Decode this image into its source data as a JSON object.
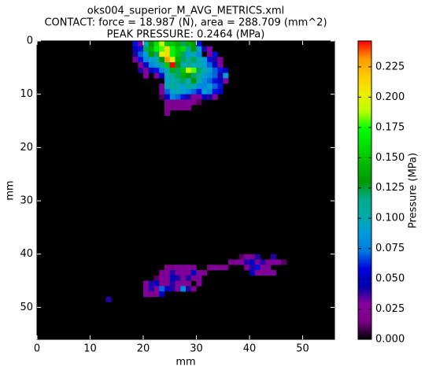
{
  "chart_data": {
    "type": "heatmap",
    "title_lines": [
      "oks004_superior_M_AVG_METRICS.xml",
      "CONTACT: force = 18.987 (N), area = 288.709 (mm^2)",
      "PEAK PRESSURE: 0.2464 (MPa)"
    ],
    "xlabel": "mm",
    "ylabel": "mm",
    "colorbar_label": "Pressure (MPa)",
    "xlim": [
      0,
      56
    ],
    "ylim": [
      56,
      0
    ],
    "xticks": [
      0,
      10,
      20,
      30,
      40,
      50
    ],
    "yticks": [
      0,
      10,
      20,
      30,
      40,
      50
    ],
    "clim": [
      0,
      0.2464
    ],
    "cticks": [
      {
        "value": 0,
        "label": "0.000"
      },
      {
        "value": 0.025,
        "label": "0.025"
      },
      {
        "value": 0.05,
        "label": "0.050"
      },
      {
        "value": 0.075,
        "label": "0.075"
      },
      {
        "value": 0.1,
        "label": "0.100"
      },
      {
        "value": 0.125,
        "label": "0.125"
      },
      {
        "value": 0.15,
        "label": "0.150"
      },
      {
        "value": 0.175,
        "label": "0.175"
      },
      {
        "value": 0.2,
        "label": "0.200"
      },
      {
        "value": 0.225,
        "label": "0.225"
      }
    ],
    "background": "#000000",
    "colormap": [
      "#000000",
      "#770088",
      "#880099",
      "#0000aa",
      "#0000dd",
      "#0077dd",
      "#0099dd",
      "#00aaaa",
      "#00aa88",
      "#009900",
      "#00bb00",
      "#00dd00",
      "#00ff00",
      "#bbff00",
      "#eeee00",
      "#ffcc00",
      "#ff9900",
      "#ff0000"
    ],
    "cells": [
      [
        18,
        0,
        0.06
      ],
      [
        19,
        0,
        0.03
      ],
      [
        20,
        0,
        0.1
      ],
      [
        21,
        0,
        0.13
      ],
      [
        22,
        0,
        0.16
      ],
      [
        23,
        0,
        0.19
      ],
      [
        24,
        0,
        0.15
      ],
      [
        25,
        0,
        0.15
      ],
      [
        26,
        0,
        0.14
      ],
      [
        27,
        0,
        0.12
      ],
      [
        28,
        0,
        0.14
      ],
      [
        29,
        0,
        0.13
      ],
      [
        30,
        0,
        0.06
      ],
      [
        18,
        1,
        0.05
      ],
      [
        19,
        1,
        0.06
      ],
      [
        20,
        1,
        0.12
      ],
      [
        21,
        1,
        0.14
      ],
      [
        22,
        1,
        0.17
      ],
      [
        23,
        1,
        0.18
      ],
      [
        24,
        1,
        0.21
      ],
      [
        25,
        1,
        0.17
      ],
      [
        26,
        1,
        0.15
      ],
      [
        27,
        1,
        0.16
      ],
      [
        28,
        1,
        0.11
      ],
      [
        29,
        1,
        0.13
      ],
      [
        30,
        1,
        0.09
      ],
      [
        31,
        1,
        0.04
      ],
      [
        32,
        1,
        0.03
      ],
      [
        18,
        2,
        0.04
      ],
      [
        19,
        2,
        0.07
      ],
      [
        20,
        2,
        0.09
      ],
      [
        21,
        2,
        0.13
      ],
      [
        22,
        2,
        0.12
      ],
      [
        23,
        2,
        0.2
      ],
      [
        24,
        2,
        0.21
      ],
      [
        25,
        2,
        0.17
      ],
      [
        26,
        2,
        0.15
      ],
      [
        27,
        2,
        0.12
      ],
      [
        28,
        2,
        0.09
      ],
      [
        29,
        2,
        0.1
      ],
      [
        30,
        2,
        0.08
      ],
      [
        32,
        2,
        0.03
      ],
      [
        33,
        2,
        0.06
      ],
      [
        18,
        3,
        0.03
      ],
      [
        19,
        3,
        0.06
      ],
      [
        20,
        3,
        0.08
      ],
      [
        21,
        3,
        0.09
      ],
      [
        22,
        3,
        0.1
      ],
      [
        23,
        3,
        0.13
      ],
      [
        24,
        3,
        0.23
      ],
      [
        25,
        3,
        0.2
      ],
      [
        26,
        3,
        0.14
      ],
      [
        27,
        3,
        0.12
      ],
      [
        28,
        3,
        0.11
      ],
      [
        29,
        3,
        0.12
      ],
      [
        30,
        3,
        0.1
      ],
      [
        31,
        3,
        0.09
      ],
      [
        32,
        3,
        0.06
      ],
      [
        33,
        3,
        0.04
      ],
      [
        34,
        3,
        0.03
      ],
      [
        19,
        4,
        0.03
      ],
      [
        20,
        4,
        0.05
      ],
      [
        21,
        4,
        0.08
      ],
      [
        22,
        4,
        0.09
      ],
      [
        23,
        4,
        0.11
      ],
      [
        24,
        4,
        0.15
      ],
      [
        25,
        4,
        0.2464
      ],
      [
        26,
        4,
        0.13
      ],
      [
        27,
        4,
        0.1
      ],
      [
        28,
        4,
        0.11
      ],
      [
        29,
        4,
        0.1
      ],
      [
        30,
        4,
        0.1
      ],
      [
        31,
        4,
        0.09
      ],
      [
        32,
        4,
        0.07
      ],
      [
        33,
        4,
        0.05
      ],
      [
        34,
        4,
        0.03
      ],
      [
        19,
        5,
        0.04
      ],
      [
        20,
        5,
        0.03
      ],
      [
        21,
        5,
        0.05
      ],
      [
        22,
        5,
        0.06
      ],
      [
        23,
        5,
        0.08
      ],
      [
        24,
        5,
        0.1
      ],
      [
        25,
        5,
        0.14
      ],
      [
        26,
        5,
        0.12
      ],
      [
        27,
        5,
        0.15
      ],
      [
        28,
        5,
        0.19
      ],
      [
        29,
        5,
        0.18
      ],
      [
        30,
        5,
        0.12
      ],
      [
        31,
        5,
        0.1
      ],
      [
        32,
        5,
        0.09
      ],
      [
        33,
        5,
        0.07
      ],
      [
        34,
        5,
        0.06
      ],
      [
        35,
        5,
        0.05
      ],
      [
        20,
        6,
        0.03
      ],
      [
        22,
        6,
        0.03
      ],
      [
        23,
        6,
        0.05
      ],
      [
        24,
        6,
        0.1
      ],
      [
        25,
        6,
        0.11
      ],
      [
        26,
        6,
        0.12
      ],
      [
        27,
        6,
        0.14
      ],
      [
        28,
        6,
        0.13
      ],
      [
        29,
        6,
        0.12
      ],
      [
        30,
        6,
        0.11
      ],
      [
        31,
        6,
        0.09
      ],
      [
        32,
        6,
        0.08
      ],
      [
        33,
        6,
        0.07
      ],
      [
        34,
        6,
        0.04
      ],
      [
        35,
        6,
        0.09
      ],
      [
        24,
        7,
        0.09
      ],
      [
        25,
        7,
        0.1
      ],
      [
        26,
        7,
        0.11
      ],
      [
        27,
        7,
        0.12
      ],
      [
        28,
        7,
        0.1
      ],
      [
        29,
        7,
        0.13
      ],
      [
        30,
        7,
        0.1
      ],
      [
        31,
        7,
        0.08
      ],
      [
        32,
        7,
        0.07
      ],
      [
        33,
        7,
        0.06
      ],
      [
        34,
        7,
        0.05
      ],
      [
        35,
        7,
        0.03
      ],
      [
        23,
        8,
        0.03
      ],
      [
        24,
        8,
        0.1
      ],
      [
        25,
        8,
        0.11
      ],
      [
        26,
        8,
        0.1
      ],
      [
        27,
        8,
        0.09
      ],
      [
        28,
        8,
        0.11
      ],
      [
        29,
        8,
        0.1
      ],
      [
        30,
        8,
        0.08
      ],
      [
        31,
        8,
        0.08
      ],
      [
        32,
        8,
        0.09
      ],
      [
        33,
        8,
        0.07
      ],
      [
        34,
        8,
        0.06
      ],
      [
        23,
        9,
        0.03
      ],
      [
        24,
        9,
        0.07
      ],
      [
        25,
        9,
        0.09
      ],
      [
        26,
        9,
        0.1
      ],
      [
        27,
        9,
        0.09
      ],
      [
        28,
        9,
        0.08
      ],
      [
        29,
        9,
        0.07
      ],
      [
        30,
        9,
        0.06
      ],
      [
        31,
        9,
        0.09
      ],
      [
        32,
        9,
        0.08
      ],
      [
        33,
        9,
        0.06
      ],
      [
        34,
        9,
        0.05
      ],
      [
        23,
        10,
        0.01
      ],
      [
        24,
        10,
        0.05
      ],
      [
        25,
        10,
        0.08
      ],
      [
        26,
        10,
        0.07
      ],
      [
        27,
        10,
        0.06
      ],
      [
        28,
        10,
        0.04
      ],
      [
        29,
        10,
        0.03
      ],
      [
        30,
        10,
        0.03
      ],
      [
        31,
        10,
        0.05
      ],
      [
        32,
        10,
        0.04
      ],
      [
        33,
        10,
        0.03
      ],
      [
        24,
        11,
        0.03
      ],
      [
        25,
        11,
        0.02
      ],
      [
        26,
        11,
        0.02
      ],
      [
        27,
        11,
        0.02
      ],
      [
        28,
        11,
        0.03
      ],
      [
        29,
        11,
        0.02
      ],
      [
        30,
        11,
        0.01
      ],
      [
        24,
        12,
        0.02
      ],
      [
        25,
        12,
        0.02
      ],
      [
        26,
        12,
        0.02
      ],
      [
        27,
        12,
        0.02
      ],
      [
        28,
        12,
        0.02
      ],
      [
        24,
        13,
        0.02
      ],
      [
        38,
        40,
        0.01
      ],
      [
        39,
        40,
        0.03
      ],
      [
        40,
        40,
        0.02
      ],
      [
        41,
        40,
        0.04
      ],
      [
        44,
        40,
        0.04
      ],
      [
        36,
        41,
        0.02
      ],
      [
        37,
        41,
        0.02
      ],
      [
        38,
        41,
        0.03
      ],
      [
        39,
        41,
        0.04
      ],
      [
        40,
        41,
        0.05
      ],
      [
        41,
        41,
        0.03
      ],
      [
        42,
        41,
        0.04
      ],
      [
        43,
        41,
        0.02
      ],
      [
        44,
        41,
        0.03
      ],
      [
        45,
        41,
        0.03
      ],
      [
        46,
        41,
        0.01
      ],
      [
        24,
        42,
        0.02
      ],
      [
        25,
        42,
        0.02
      ],
      [
        26,
        42,
        0.03
      ],
      [
        27,
        42,
        0.02
      ],
      [
        28,
        42,
        0.03
      ],
      [
        29,
        42,
        0.02
      ],
      [
        32,
        42,
        0.02
      ],
      [
        33,
        42,
        0.03
      ],
      [
        34,
        42,
        0.02
      ],
      [
        35,
        42,
        0.02
      ],
      [
        39,
        42,
        0.03
      ],
      [
        40,
        42,
        0.04
      ],
      [
        41,
        42,
        0.06
      ],
      [
        42,
        42,
        0.03
      ],
      [
        43,
        42,
        0.03
      ],
      [
        23,
        43,
        0.02
      ],
      [
        24,
        43,
        0.03
      ],
      [
        25,
        43,
        0.04
      ],
      [
        26,
        43,
        0.03
      ],
      [
        27,
        43,
        0.03
      ],
      [
        28,
        43,
        0.02
      ],
      [
        29,
        43,
        0.05
      ],
      [
        30,
        43,
        0.03
      ],
      [
        31,
        43,
        0.02
      ],
      [
        40,
        43,
        0.05
      ],
      [
        41,
        43,
        0.03
      ],
      [
        42,
        43,
        0.02
      ],
      [
        43,
        43,
        0.03
      ],
      [
        44,
        43,
        0.03
      ],
      [
        22,
        44,
        0.01
      ],
      [
        23,
        44,
        0.03
      ],
      [
        24,
        44,
        0.02
      ],
      [
        25,
        44,
        0.05
      ],
      [
        26,
        44,
        0.04
      ],
      [
        27,
        44,
        0.03
      ],
      [
        28,
        44,
        0.04
      ],
      [
        29,
        44,
        0.02
      ],
      [
        30,
        44,
        0.03
      ],
      [
        20,
        45,
        0.03
      ],
      [
        21,
        45,
        0.04
      ],
      [
        22,
        45,
        0.05
      ],
      [
        23,
        45,
        0.02
      ],
      [
        24,
        45,
        0.02
      ],
      [
        25,
        45,
        0.04
      ],
      [
        26,
        45,
        0.03
      ],
      [
        27,
        45,
        0.03
      ],
      [
        28,
        45,
        0.02
      ],
      [
        30,
        45,
        0.03
      ],
      [
        20,
        46,
        0.03
      ],
      [
        21,
        46,
        0.04
      ],
      [
        22,
        46,
        0.03
      ],
      [
        23,
        46,
        0.07
      ],
      [
        24,
        46,
        0.05
      ],
      [
        25,
        46,
        0.04
      ],
      [
        26,
        46,
        0.03
      ],
      [
        27,
        46,
        0.08
      ],
      [
        28,
        46,
        0.04
      ],
      [
        29,
        46,
        0.02
      ],
      [
        20,
        47,
        0.03
      ],
      [
        21,
        47,
        0.02
      ],
      [
        22,
        47,
        0.02
      ],
      [
        23,
        47,
        0.05
      ],
      [
        13,
        48,
        0.04
      ]
    ]
  }
}
